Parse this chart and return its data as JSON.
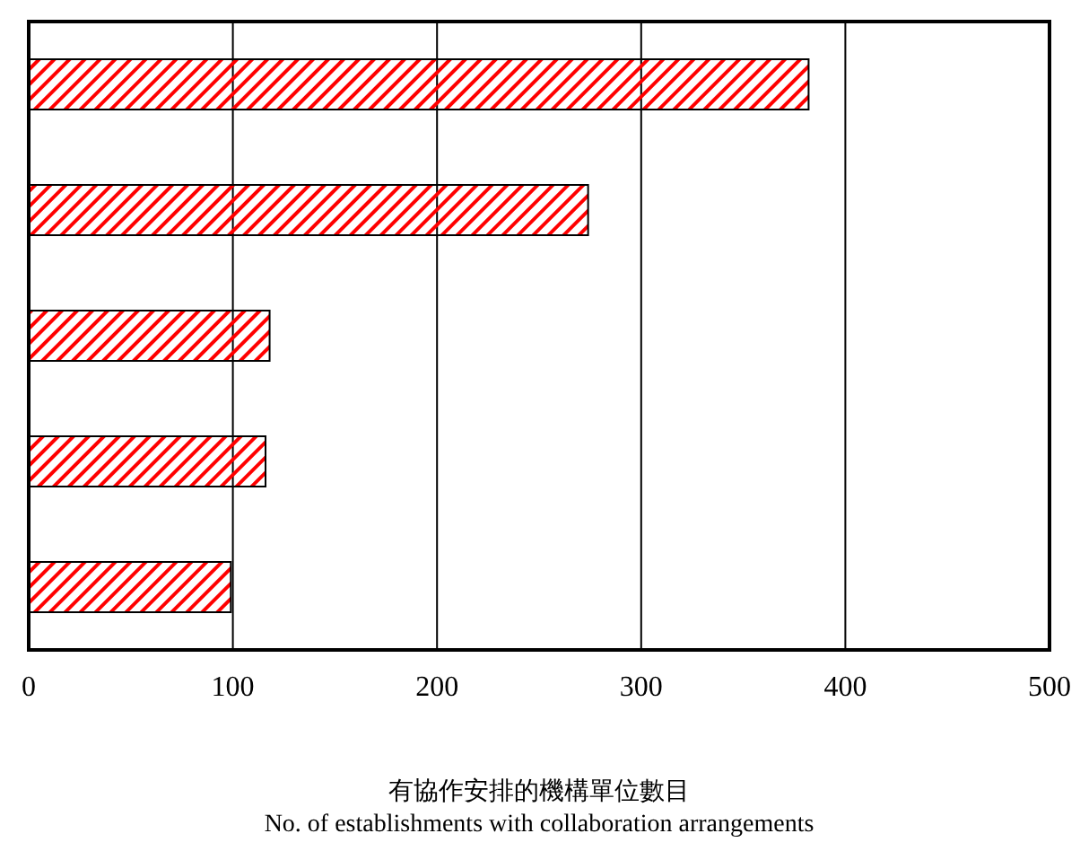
{
  "chart_data": {
    "type": "bar",
    "orientation": "horizontal",
    "xlabel": "有協作安排的機構單位數目\nNo. of establishments with collaboration arrangements",
    "categories": [
      null,
      null,
      null,
      null,
      null
    ],
    "values": [
      382,
      274,
      118,
      116,
      99
    ],
    "color": "#ff0000",
    "xlim": [
      0,
      500
    ],
    "xticks": [
      0,
      100,
      200,
      300,
      400,
      500
    ],
    "grid": "x"
  }
}
